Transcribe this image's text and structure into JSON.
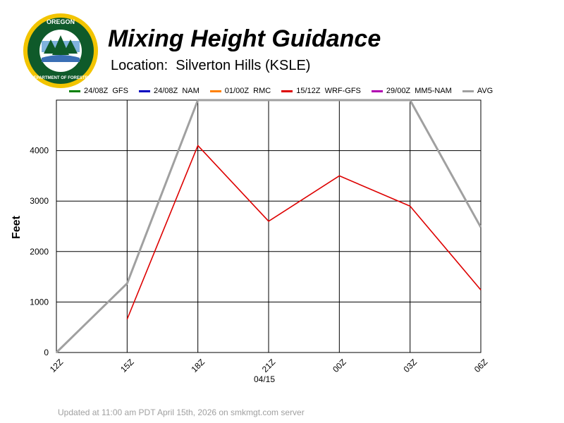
{
  "header": {
    "title": "Mixing Height Guidance",
    "subtitle": "Location:  Silverton Hills (KSLE)",
    "logo_text_top": "OREGON",
    "logo_text_ring": "DEPARTMENT OF FORESTRY"
  },
  "footer": {
    "text": "Updated at 11:00 am PDT April 15th, 2026 on smkmgt.com server"
  },
  "chart_data": {
    "type": "line",
    "title": "Mixing Height Guidance",
    "ylabel": "Feet",
    "xlabel": "04/15",
    "categories": [
      "12Z",
      "15Z",
      "18Z",
      "21Z",
      "00Z",
      "03Z",
      "06Z"
    ],
    "ylim": [
      0,
      5000
    ],
    "yticks": [
      0,
      1000,
      2000,
      3000,
      4000
    ],
    "grid": true,
    "legend_position": "top",
    "series": [
      {
        "name": "24/08Z  GFS",
        "color": "#008000",
        "values": [
          null,
          null,
          null,
          null,
          null,
          null,
          null
        ]
      },
      {
        "name": "24/08Z  NAM",
        "color": "#0000c0",
        "values": [
          null,
          null,
          null,
          null,
          null,
          null,
          null
        ]
      },
      {
        "name": "01/00Z  RMC",
        "color": "#ff8000",
        "values": [
          null,
          null,
          null,
          null,
          null,
          null,
          null
        ]
      },
      {
        "name": "15/12Z  WRF-GFS",
        "color": "#dd0000",
        "values": [
          null,
          660,
          4100,
          2600,
          3500,
          2900,
          1240
        ]
      },
      {
        "name": "29/00Z  MM5-NAM",
        "color": "#b000b0",
        "values": [
          null,
          null,
          null,
          null,
          null,
          null,
          null
        ]
      },
      {
        "name": "AVG",
        "color": "#a0a0a0",
        "values": [
          0,
          1370,
          5000,
          5000,
          5000,
          5000,
          2480
        ]
      }
    ]
  }
}
